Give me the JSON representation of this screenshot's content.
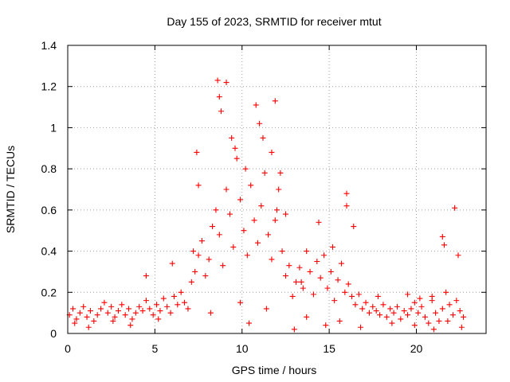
{
  "chart_data": {
    "type": "scatter",
    "title": "Day 155 of 2023, SRMTID for receiver mtut",
    "xlabel": "GPS time / hours",
    "ylabel": "SRMTID / TECUs",
    "xlim": [
      0,
      24
    ],
    "ylim": [
      0,
      1.4
    ],
    "xticks": [
      0,
      5,
      10,
      15,
      20
    ],
    "xtick_labels": [
      "0",
      "5",
      "10",
      "15",
      "20"
    ],
    "yticks": [
      0,
      0.2,
      0.4,
      0.6,
      0.8,
      1,
      1.2,
      1.4
    ],
    "ytick_labels": [
      "0",
      "0.2",
      "0.4",
      "0.6",
      "0.8",
      "1",
      "1.2",
      "1.4"
    ],
    "grid": true,
    "marker": "+",
    "marker_color": "#ff0000",
    "series": [
      {
        "name": "SRMTID",
        "x": [
          0.1,
          0.3,
          0.5,
          0.7,
          0.9,
          1.1,
          1.3,
          1.5,
          1.7,
          1.9,
          2.1,
          2.3,
          2.5,
          2.7,
          2.9,
          3.1,
          3.3,
          3.5,
          3.7,
          3.9,
          4.1,
          4.3,
          4.5,
          4.7,
          4.9,
          5.1,
          5.3,
          5.5,
          5.7,
          5.9,
          6.1,
          6.3,
          6.5,
          6.7,
          6.9,
          7.1,
          7.3,
          7.5,
          7.7,
          7.9,
          8.1,
          8.3,
          8.5,
          8.7,
          8.9,
          9.1,
          9.3,
          9.5,
          9.7,
          9.9,
          10.1,
          10.3,
          10.5,
          10.7,
          10.9,
          11.1,
          11.3,
          11.5,
          11.7,
          11.9,
          12.1,
          12.3,
          12.5,
          12.7,
          12.9,
          13.1,
          13.3,
          13.5,
          13.7,
          13.9,
          14.1,
          14.3,
          14.5,
          14.7,
          14.9,
          15.1,
          15.3,
          15.5,
          15.7,
          15.9,
          16.1,
          16.3,
          16.5,
          16.7,
          16.9,
          17.1,
          17.3,
          17.5,
          17.7,
          17.9,
          18.1,
          18.3,
          18.5,
          18.7,
          18.9,
          19.1,
          19.3,
          19.5,
          19.7,
          19.9,
          20.1,
          20.3,
          20.5,
          20.7,
          20.9,
          21.1,
          21.3,
          21.5,
          21.7,
          21.9,
          22.1,
          22.3,
          22.5,
          22.7,
          8.6,
          8.7,
          9.1,
          9.4,
          8.8,
          10.8,
          11.0,
          11.9,
          11.7,
          16.0,
          16.0,
          7.4,
          7.5,
          9.6,
          10.2,
          11.2,
          12.2,
          12.5,
          14.4,
          15.2,
          16.4,
          21.5,
          21.6,
          22.2,
          22.4,
          4.5,
          6.0,
          7.2,
          12.0,
          13.4,
          17.8,
          19.5,
          20.2,
          20.9,
          0.4,
          1.2,
          2.6,
          3.6,
          5.2,
          8.2,
          9.9,
          10.4,
          11.4,
          13.0,
          13.7,
          14.8,
          15.6,
          16.8,
          18.6,
          19.9,
          21.0,
          21.8,
          22.6
        ],
        "y": [
          0.09,
          0.12,
          0.07,
          0.1,
          0.13,
          0.08,
          0.11,
          0.06,
          0.09,
          0.12,
          0.15,
          0.1,
          0.13,
          0.08,
          0.11,
          0.14,
          0.09,
          0.12,
          0.07,
          0.1,
          0.13,
          0.11,
          0.16,
          0.12,
          0.09,
          0.14,
          0.11,
          0.17,
          0.13,
          0.1,
          0.18,
          0.14,
          0.2,
          0.15,
          0.12,
          0.25,
          0.3,
          0.38,
          0.45,
          0.28,
          0.36,
          0.52,
          0.6,
          0.48,
          0.33,
          0.7,
          0.58,
          0.42,
          0.85,
          0.65,
          0.5,
          0.38,
          0.72,
          0.55,
          0.44,
          0.62,
          0.78,
          0.48,
          0.36,
          0.55,
          0.7,
          0.4,
          0.28,
          0.33,
          0.18,
          0.25,
          0.32,
          0.22,
          0.4,
          0.3,
          0.19,
          0.35,
          0.27,
          0.38,
          0.22,
          0.3,
          0.16,
          0.26,
          0.34,
          0.2,
          0.24,
          0.18,
          0.14,
          0.19,
          0.12,
          0.15,
          0.1,
          0.13,
          0.11,
          0.09,
          0.14,
          0.08,
          0.12,
          0.1,
          0.13,
          0.07,
          0.11,
          0.09,
          0.12,
          0.15,
          0.1,
          0.13,
          0.08,
          0.05,
          0.18,
          0.1,
          0.06,
          0.12,
          0.2,
          0.14,
          0.09,
          0.16,
          0.11,
          0.08,
          1.23,
          1.15,
          1.22,
          0.95,
          1.08,
          1.11,
          1.02,
          1.13,
          0.88,
          0.68,
          0.62,
          0.88,
          0.72,
          0.9,
          0.8,
          0.95,
          0.78,
          0.58,
          0.54,
          0.42,
          0.52,
          0.47,
          0.43,
          0.61,
          0.38,
          0.28,
          0.34,
          0.4,
          0.6,
          0.25,
          0.18,
          0.19,
          0.17,
          0.16,
          0.05,
          0.03,
          0.06,
          0.04,
          0.07,
          0.1,
          0.15,
          0.05,
          0.12,
          0.02,
          0.08,
          0.04,
          0.06,
          0.03,
          0.05,
          0.04,
          0.02,
          0.06,
          0.03
        ]
      }
    ]
  }
}
